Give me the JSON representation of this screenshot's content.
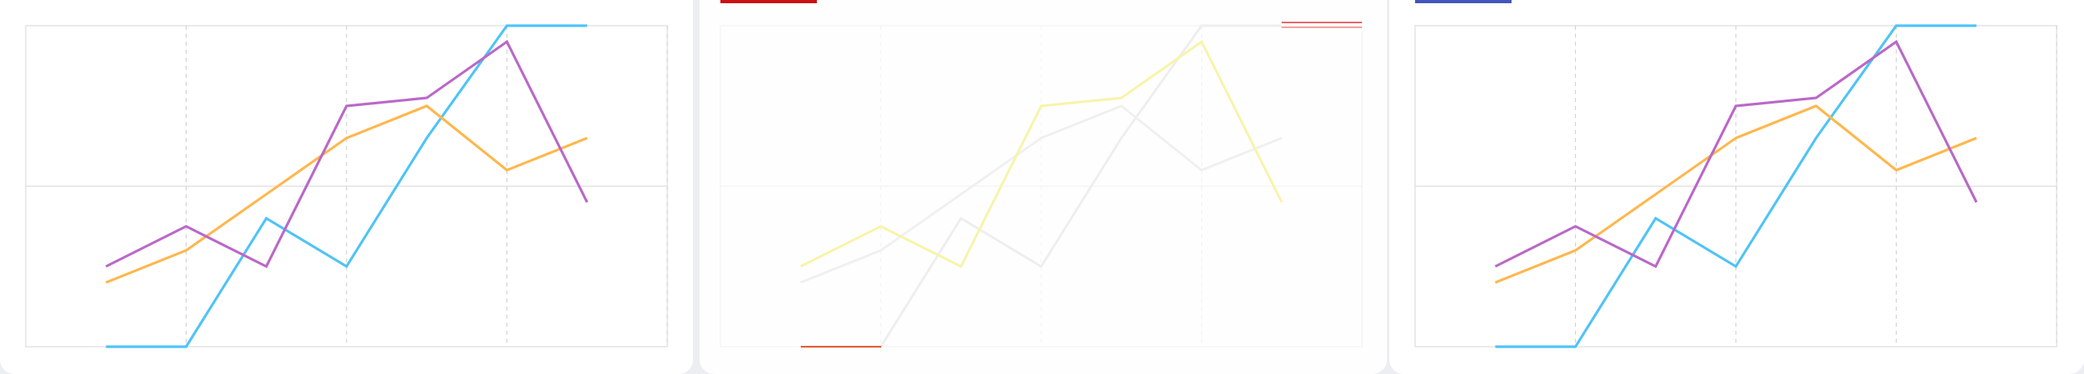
{
  "theme": {
    "panel_bg": "#ffffff",
    "page_bg": "#eceef1",
    "grid_major": "#dcdcdc",
    "grid_minor": "#cfd3d8"
  },
  "tabs": [
    {
      "accent_color": "#ffffff"
    },
    {
      "accent_color": "#cc1111"
    },
    {
      "accent_color": "#4455bb"
    }
  ],
  "chart_data": [
    {
      "type": "line",
      "x": [
        1,
        2,
        3,
        4,
        5,
        6,
        7
      ],
      "xlim": [
        0,
        8
      ],
      "ylim": [
        0,
        2
      ],
      "grid": true,
      "series": [
        {
          "color": "#4fc3f7",
          "values": [
            0,
            0,
            0.8,
            0.5,
            1.3,
            2.0,
            2.0
          ]
        },
        {
          "color": "#ffb74d",
          "values": [
            0.4,
            0.6,
            0.95,
            1.3,
            1.5,
            1.1,
            1.3
          ]
        },
        {
          "color": "#ba68c8",
          "values": [
            0.5,
            0.75,
            0.5,
            1.5,
            1.55,
            1.9,
            0.9
          ]
        }
      ]
    },
    {
      "type": "line",
      "x": [
        1,
        2,
        3,
        4,
        5,
        6,
        7
      ],
      "xlim": [
        0,
        8
      ],
      "ylim": [
        0,
        2
      ],
      "grid": true,
      "faded": true,
      "series": [
        {
          "color": "#eeeeee",
          "values": [
            0,
            0,
            0.8,
            0.5,
            1.3,
            2.0,
            2.0
          ]
        },
        {
          "color": "#f0f0f0",
          "values": [
            0.4,
            0.6,
            0.95,
            1.3,
            1.5,
            1.1,
            1.3
          ]
        },
        {
          "color": "#f8f4a8",
          "values": [
            0.5,
            0.75,
            0.5,
            1.5,
            1.55,
            1.9,
            0.9
          ]
        }
      ]
    },
    {
      "type": "line",
      "x": [
        1,
        2,
        3,
        4,
        5,
        6,
        7
      ],
      "xlim": [
        0,
        8
      ],
      "ylim": [
        0,
        2
      ],
      "grid": true,
      "series": [
        {
          "color": "#4fc3f7",
          "values": [
            0,
            0,
            0.8,
            0.5,
            1.3,
            2.0,
            2.0
          ]
        },
        {
          "color": "#ffb74d",
          "values": [
            0.4,
            0.6,
            0.95,
            1.3,
            1.5,
            1.1,
            1.3
          ]
        },
        {
          "color": "#ba68c8",
          "values": [
            0.5,
            0.75,
            0.5,
            1.5,
            1.55,
            1.9,
            0.9
          ]
        }
      ]
    }
  ]
}
